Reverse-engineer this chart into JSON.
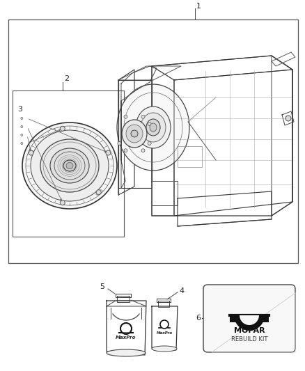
{
  "bg_color": "#ffffff",
  "line_color": "#444444",
  "thin_line": "#888888",
  "label_color": "#222222",
  "label_1": "1",
  "label_2": "2",
  "label_3": "3",
  "label_4": "4",
  "label_5": "5",
  "label_6": "6",
  "mopar_text": "MOPAR",
  "rebuild_kit_text": "REBUILD KIT",
  "maxpro_text": "MaxPro",
  "fig_width": 4.38,
  "fig_height": 5.33,
  "dpi": 100
}
